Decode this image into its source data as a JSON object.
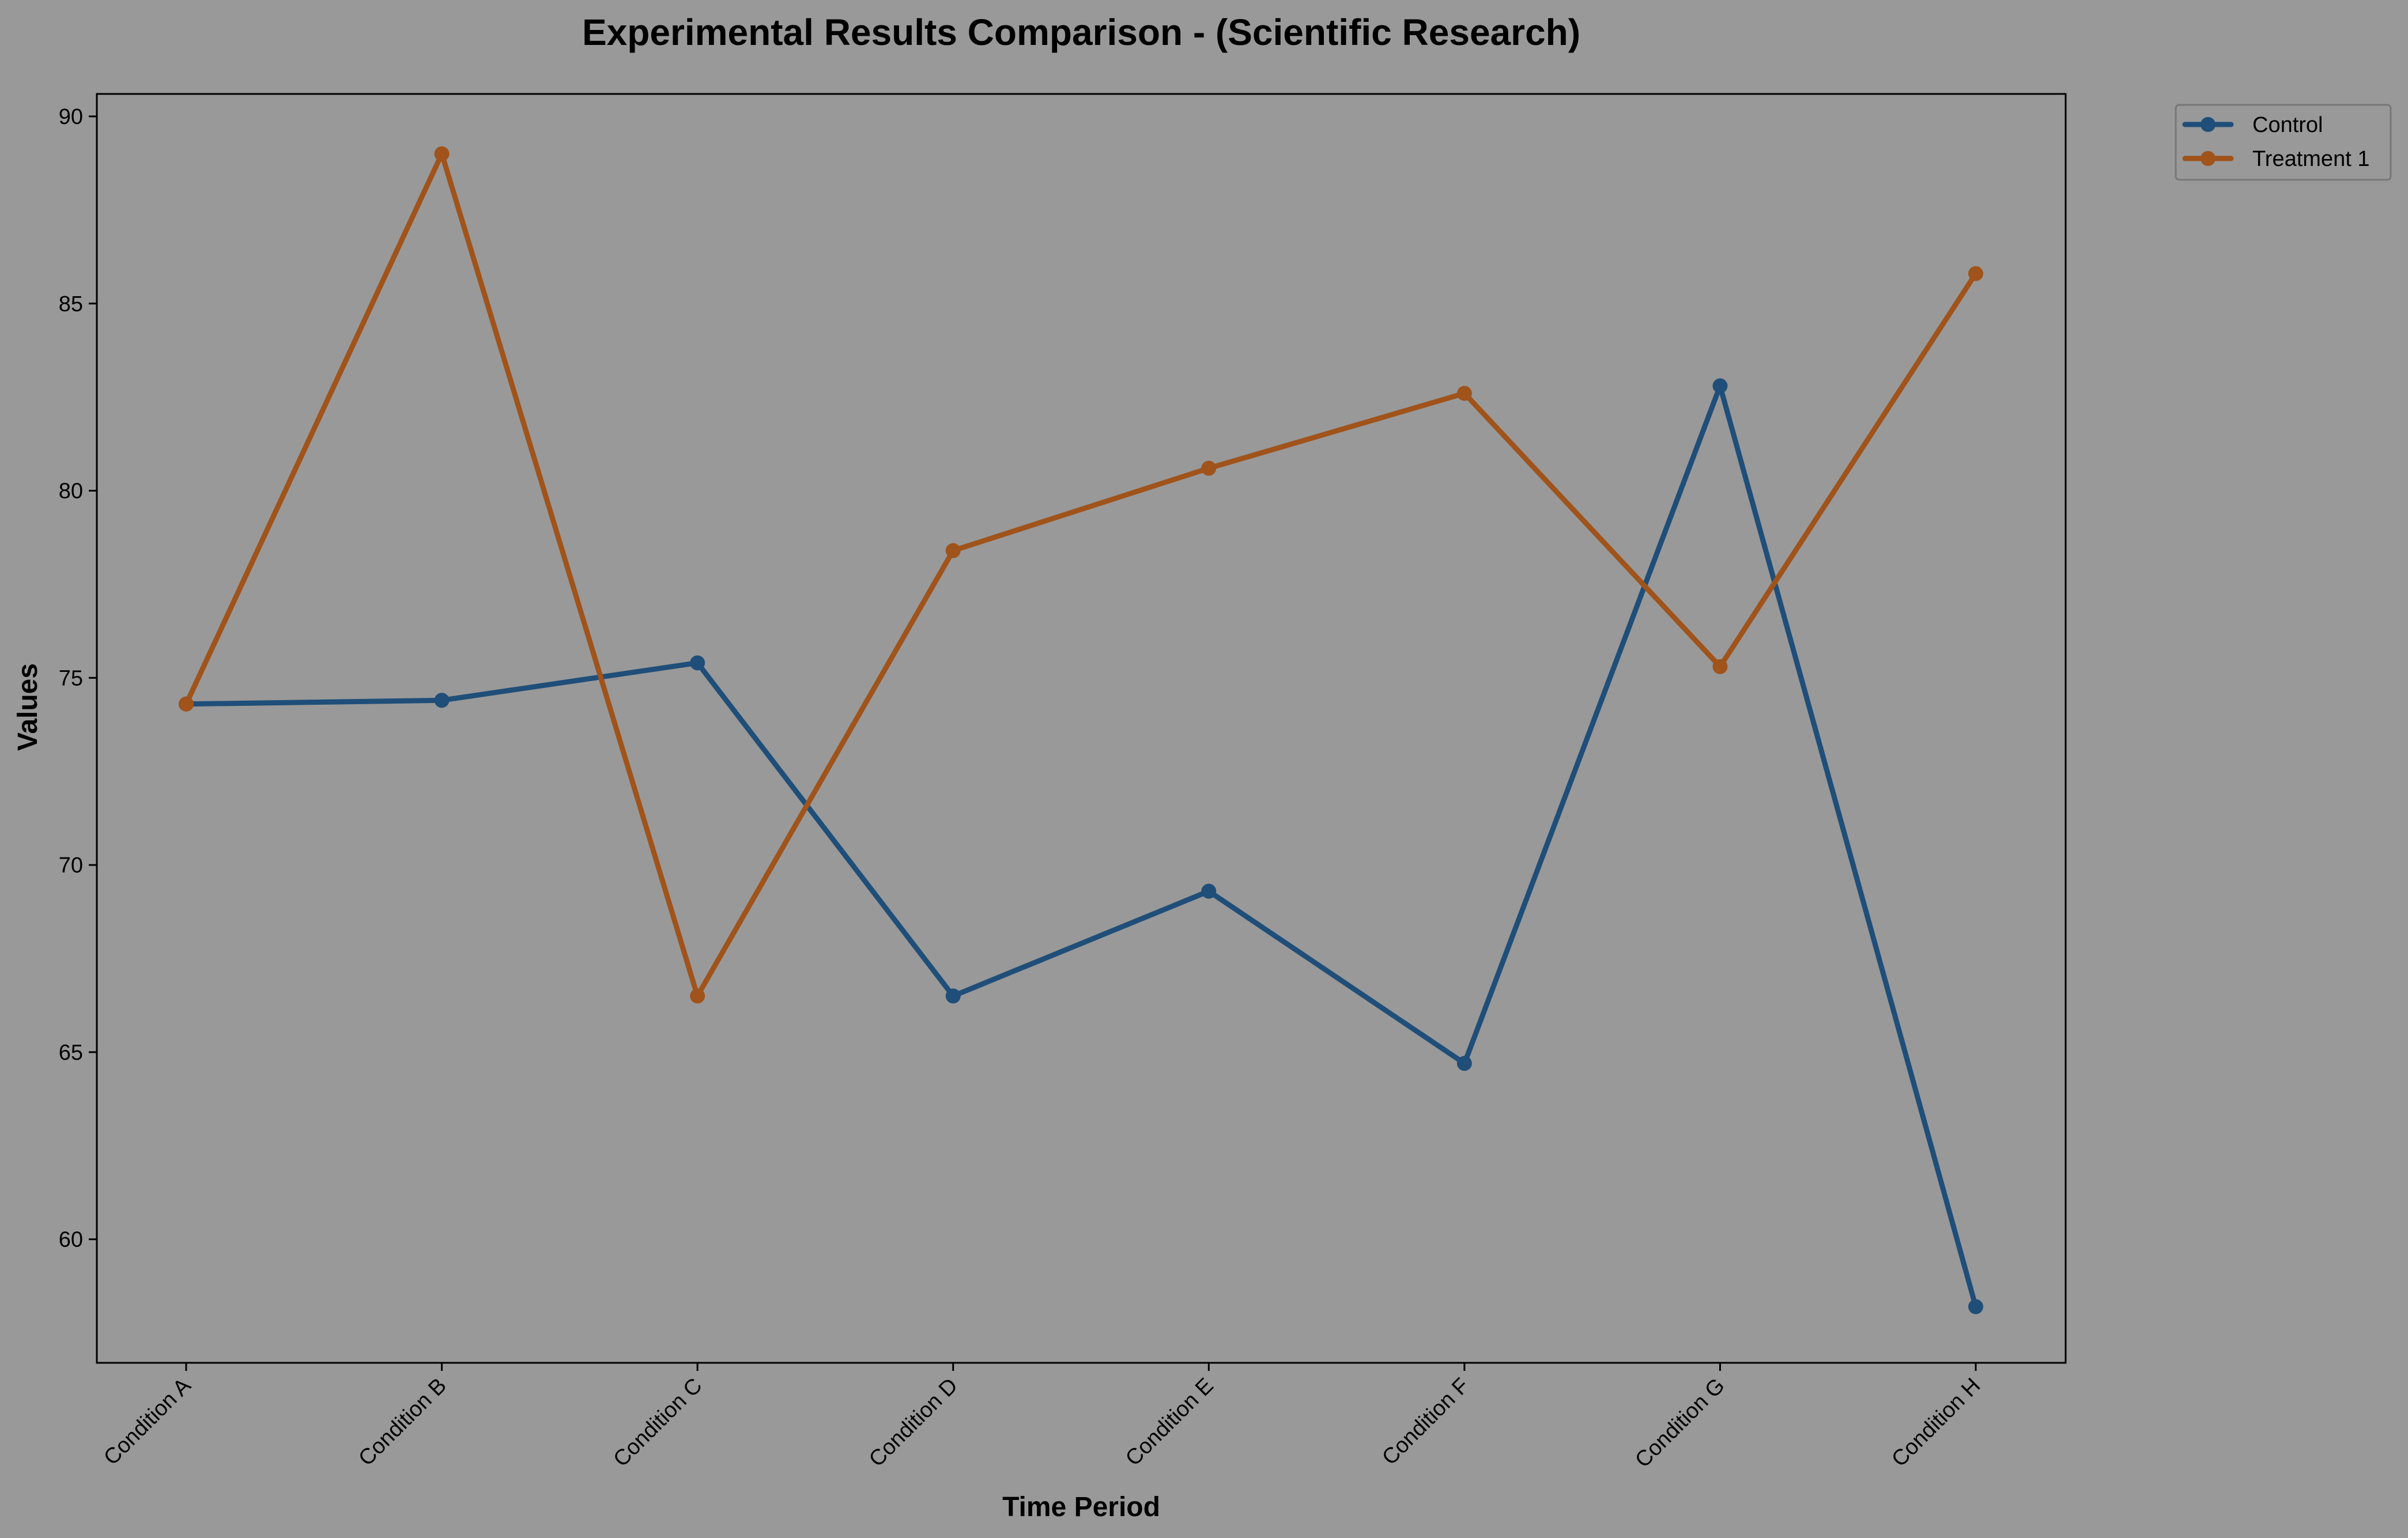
{
  "chart_data": {
    "type": "line",
    "title": "Experimental Results Comparison - (Scientific Research)",
    "xlabel": "Time Period",
    "ylabel": "Values",
    "categories": [
      "Condition A",
      "Condition B",
      "Condition C",
      "Condition D",
      "Condition E",
      "Condition F",
      "Condition G",
      "Condition H"
    ],
    "y_ticks": [
      60,
      65,
      70,
      75,
      80,
      85,
      90
    ],
    "ylim": [
      56.7,
      90.6
    ],
    "grid": false,
    "legend_position": "outside top-right",
    "series": [
      {
        "name": "Control",
        "color": "#1f4e79",
        "values": [
          74.3,
          74.4,
          75.4,
          66.5,
          69.3,
          64.7,
          82.8,
          58.2
        ]
      },
      {
        "name": "Treatment 1",
        "color": "#a0531a",
        "values": [
          74.3,
          89.0,
          66.5,
          78.4,
          80.6,
          82.6,
          75.3,
          85.8
        ]
      }
    ]
  },
  "colors": {
    "background": "#999999",
    "axes_edge": "#000000"
  }
}
